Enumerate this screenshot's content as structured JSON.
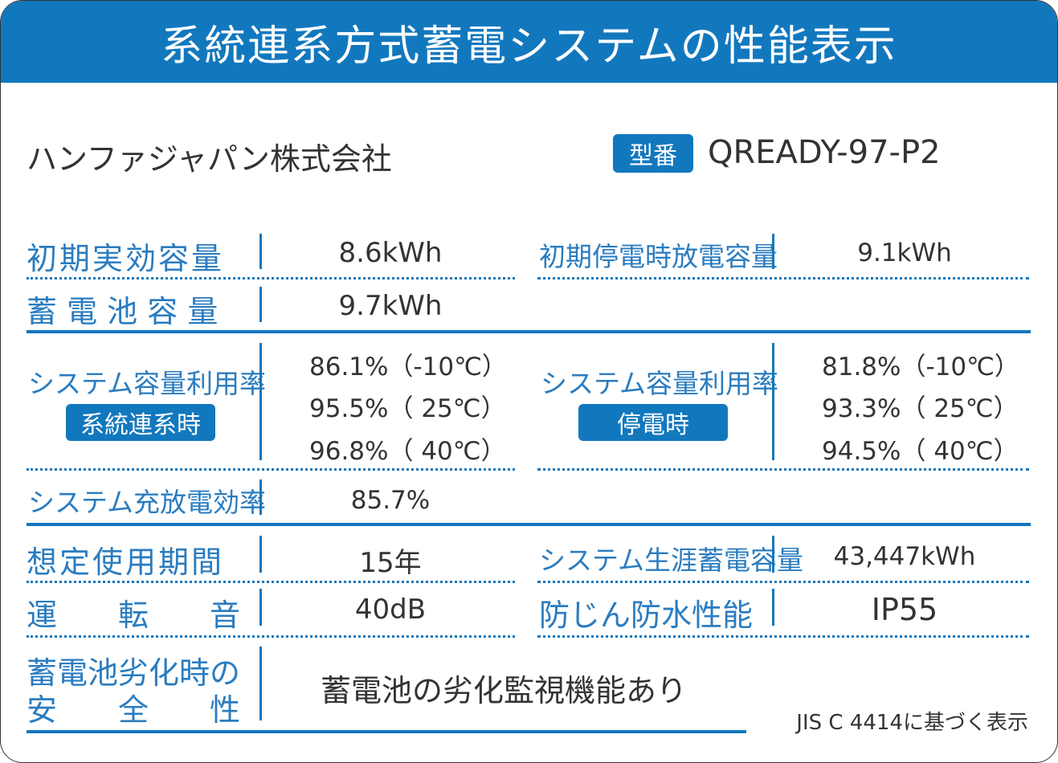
{
  "title": "系統連系方式蓄電システムの性能表示",
  "company": "ハンファジャパン株式会社",
  "model_badge": "型番",
  "model": "QREADY-97-P2",
  "rows": {
    "initial_capacity": {
      "label": "初期実効容量",
      "value": "8.6kWh"
    },
    "initial_outage_capacity": {
      "label": "初期停電時放電容量",
      "value": "9.1kWh"
    },
    "battery_capacity": {
      "label": "蓄 電 池 容 量",
      "value": "9.7kWh"
    },
    "utilization_grid": {
      "label": "システム容量利用率",
      "badge": "系統連系時",
      "values": [
        "86.1%（-10℃）",
        "95.5%（ 25℃）",
        "96.8%（ 40℃）"
      ]
    },
    "utilization_outage": {
      "label": "システム容量利用率",
      "badge": "停電時",
      "values": [
        "81.8%（-10℃）",
        "93.3%（ 25℃）",
        "94.5%（ 40℃）"
      ]
    },
    "efficiency": {
      "label": "システム充放電効率",
      "value": "85.7%"
    },
    "expected_life": {
      "label": "想定使用期間",
      "value": "15年"
    },
    "lifetime_capacity": {
      "label": "システム生涯蓄電容量",
      "value": "43,447kWh"
    },
    "noise": {
      "label": "運　　転　　音",
      "value": "40dB"
    },
    "ip_rating": {
      "label": "防じん防水性能",
      "value": "IP55"
    },
    "safety": {
      "label_line1": "蓄電池劣化時の",
      "label_line2": "安　　全　　性",
      "value": "蓄電池の劣化監視機能あり"
    }
  },
  "footnote": "JIS C 4414に基づく表示",
  "colors": {
    "accent": "#1278be",
    "label": "#2a7cc0",
    "text": "#333333"
  }
}
